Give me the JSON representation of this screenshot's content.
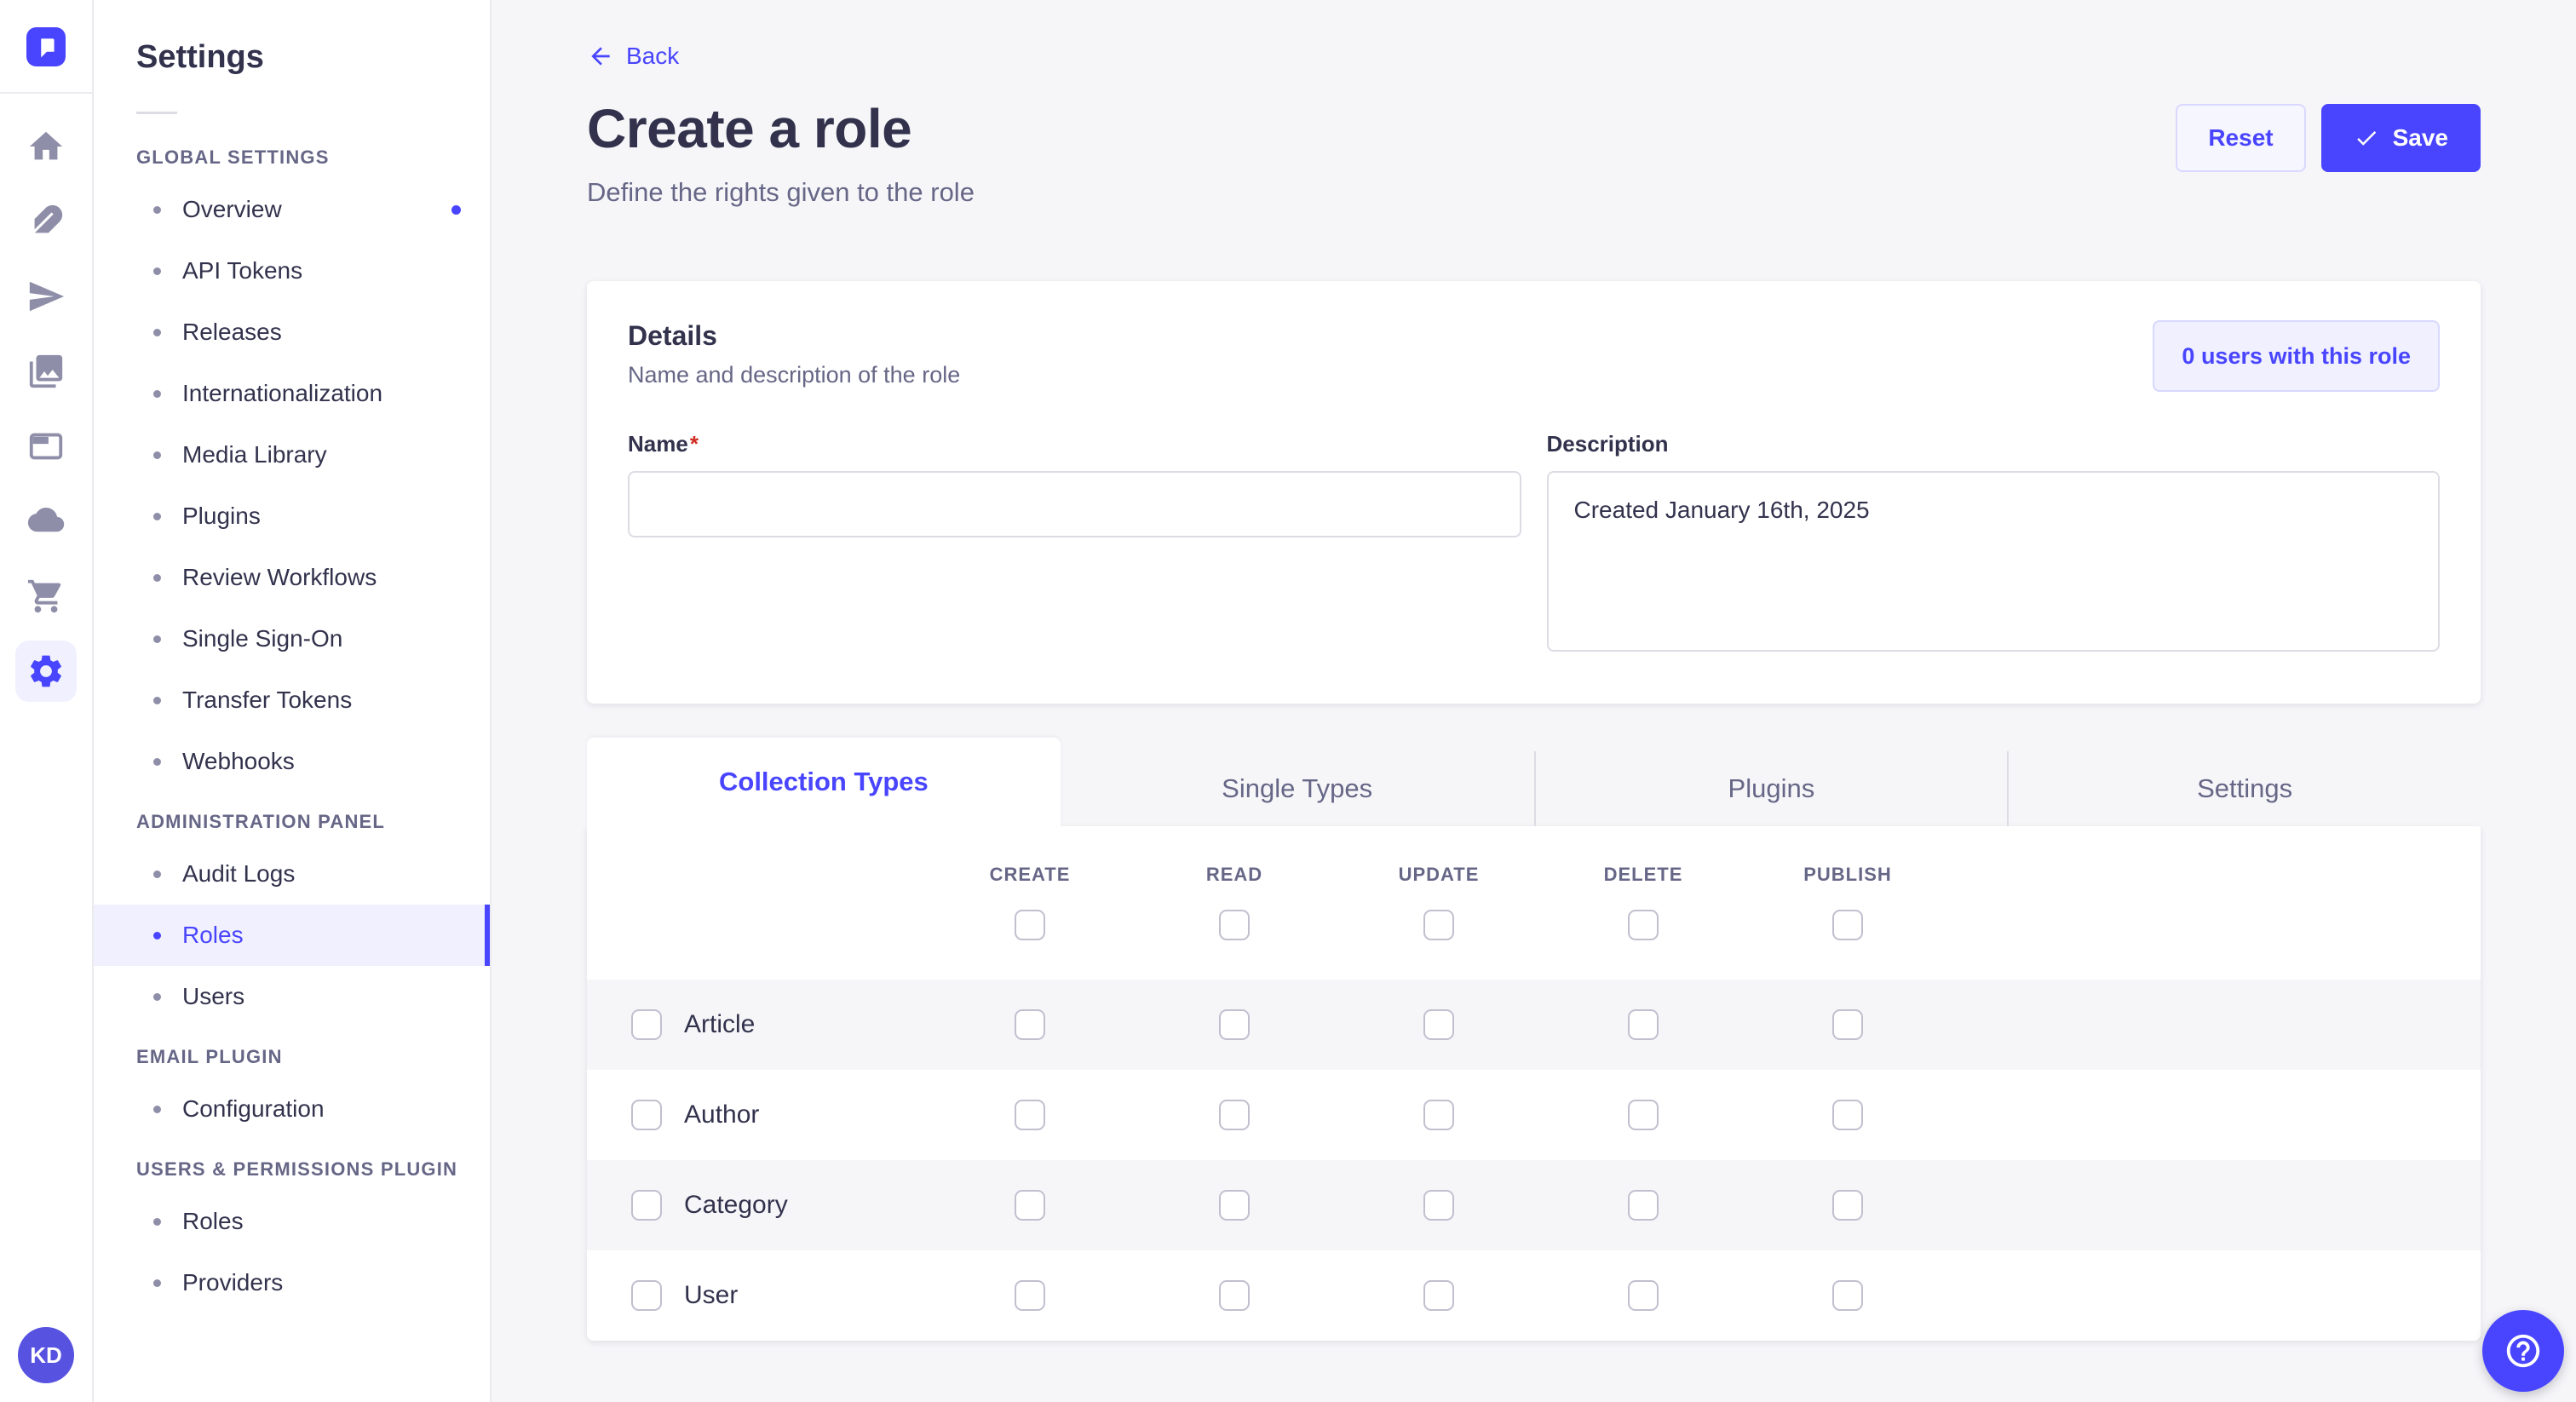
{
  "colors": {
    "accent": "#4945ff",
    "accent_light_bg": "#f0f0ff",
    "accent_border": "#d9d8ff",
    "text_dark": "#32324d",
    "text_muted": "#666687",
    "page_bg": "#f6f6f9",
    "required_red": "#d02b20"
  },
  "rail": {
    "icons": [
      "strapi-logo",
      "home-icon",
      "content-manager-icon",
      "releases-icon",
      "media-library-icon",
      "content-type-builder-icon",
      "deploy-icon",
      "marketplace-icon",
      "settings-icon"
    ],
    "active_icon": "settings-icon",
    "avatar_initials": "KD"
  },
  "sidebar": {
    "title": "Settings",
    "sections": [
      {
        "label": "GLOBAL SETTINGS",
        "items": [
          {
            "label": "Overview",
            "dot": true
          },
          {
            "label": "API Tokens"
          },
          {
            "label": "Releases"
          },
          {
            "label": "Internationalization"
          },
          {
            "label": "Media Library"
          },
          {
            "label": "Plugins"
          },
          {
            "label": "Review Workflows"
          },
          {
            "label": "Single Sign-On"
          },
          {
            "label": "Transfer Tokens"
          },
          {
            "label": "Webhooks"
          }
        ]
      },
      {
        "label": "ADMINISTRATION PANEL",
        "items": [
          {
            "label": "Audit Logs"
          },
          {
            "label": "Roles",
            "active": true
          },
          {
            "label": "Users"
          }
        ]
      },
      {
        "label": "EMAIL PLUGIN",
        "items": [
          {
            "label": "Configuration"
          }
        ]
      },
      {
        "label": "USERS & PERMISSIONS PLUGIN",
        "items": [
          {
            "label": "Roles"
          },
          {
            "label": "Providers"
          }
        ]
      }
    ]
  },
  "header": {
    "back_label": "Back",
    "title": "Create a role",
    "subtitle": "Define the rights given to the role",
    "reset_label": "Reset",
    "save_label": "Save"
  },
  "details": {
    "title": "Details",
    "subtitle": "Name and description of the role",
    "users_badge": "0 users with this role",
    "name_label": "Name",
    "required_mark": "*",
    "name_value": "",
    "description_label": "Description",
    "description_value": "Created January 16th, 2025"
  },
  "permissions": {
    "tabs": [
      {
        "label": "Collection Types",
        "active": true
      },
      {
        "label": "Single Types"
      },
      {
        "label": "Plugins"
      },
      {
        "label": "Settings"
      }
    ],
    "columns": [
      "CREATE",
      "READ",
      "UPDATE",
      "DELETE",
      "PUBLISH"
    ],
    "select_all": [
      false,
      false,
      false,
      false,
      false
    ],
    "rows": [
      {
        "label": "Article",
        "checked": false,
        "values": [
          false,
          false,
          false,
          false,
          false
        ]
      },
      {
        "label": "Author",
        "checked": false,
        "values": [
          false,
          false,
          false,
          false,
          false
        ]
      },
      {
        "label": "Category",
        "checked": false,
        "values": [
          false,
          false,
          false,
          false,
          false
        ]
      },
      {
        "label": "User",
        "checked": false,
        "values": [
          false,
          false,
          false,
          false,
          false
        ]
      }
    ]
  },
  "help": {
    "icon": "question-circle-icon"
  }
}
